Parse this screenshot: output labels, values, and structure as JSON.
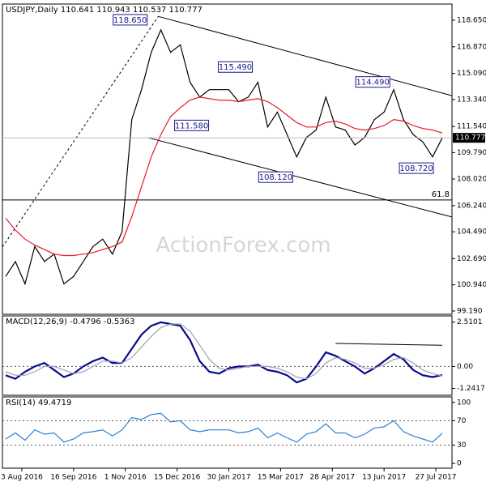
{
  "chart_data": [
    {
      "type": "line",
      "title": "USDJPY,Daily  110.641 110.943 110.537 110.777",
      "watermark": "ActionForex.com",
      "x": [
        -10,
        -4,
        2,
        8,
        14,
        20,
        26,
        32,
        38,
        44,
        50,
        56,
        62,
        68,
        74,
        80,
        86,
        92,
        98,
        104,
        110,
        116,
        122,
        128,
        134,
        140,
        146,
        152,
        158,
        164,
        170,
        176,
        182,
        188,
        194,
        200,
        206,
        212,
        218,
        224,
        230,
        236,
        242,
        248,
        254,
        260
      ],
      "xlim": [
        -12,
        266
      ],
      "series": [
        {
          "name": "Close",
          "color": "#000000",
          "values": [
            101.5,
            102.5,
            101,
            103.5,
            102.5,
            103,
            101,
            101.5,
            102.5,
            103.5,
            104,
            103,
            104.5,
            112,
            114,
            116.5,
            118,
            116.5,
            117,
            114.5,
            113.5,
            114,
            114,
            114,
            113.2,
            113.5,
            114.5,
            111.5,
            112.5,
            111,
            109.5,
            110.8,
            111.3,
            113.5,
            111.5,
            111.3,
            110.3,
            110.8,
            112,
            112.5,
            114,
            112,
            111,
            110.5,
            109.5,
            110.777
          ]
        },
        {
          "name": "SMA",
          "color": "#e8182a",
          "values": [
            105.4,
            104.6,
            104,
            103.6,
            103.3,
            103,
            102.9,
            102.9,
            103,
            103.1,
            103.3,
            103.5,
            103.8,
            105.5,
            107.5,
            109.5,
            111,
            112.2,
            112.8,
            113.3,
            113.5,
            113.4,
            113.3,
            113.3,
            113.2,
            113.3,
            113.4,
            113.2,
            112.8,
            112.3,
            111.8,
            111.5,
            111.5,
            111.8,
            111.9,
            111.7,
            111.4,
            111.3,
            111.4,
            111.6,
            112,
            111.9,
            111.6,
            111.4,
            111.3,
            111.1
          ]
        }
      ],
      "ylim": [
        98.97,
        119.73
      ],
      "yticks": [
        {
          "value": 118.65,
          "label": "118.650"
        },
        {
          "value": 116.87,
          "label": "116.870"
        },
        {
          "value": 115.09,
          "label": "115.090"
        },
        {
          "value": 113.34,
          "label": "113.340"
        },
        {
          "value": 111.54,
          "label": "111.540"
        },
        {
          "value": 109.79,
          "label": "109.790"
        },
        {
          "value": 108.02,
          "label": "108.020"
        },
        {
          "value": 106.24,
          "label": "106.240"
        },
        {
          "value": 104.49,
          "label": "104.490"
        },
        {
          "value": 102.69,
          "label": "102.690"
        },
        {
          "value": 100.94,
          "label": "100.940"
        },
        {
          "value": 99.19,
          "label": "99.190"
        }
      ],
      "last_price": 110.777,
      "annotations": [
        {
          "label": "118.650",
          "x": 67,
          "y": 118.65
        },
        {
          "label": "115.490",
          "x": 132,
          "y": 115.49
        },
        {
          "label": "111.580",
          "x": 105,
          "y": 111.58
        },
        {
          "label": "108.120",
          "x": 157,
          "y": 108.12
        },
        {
          "label": "114.490",
          "x": 217,
          "y": 114.49
        },
        {
          "label": "108.720",
          "x": 244,
          "y": 108.72
        }
      ],
      "lines": [
        {
          "x": [
            84.5,
            266
          ],
          "y": [
            118.9,
            113.6
          ],
          "style": "solid"
        },
        {
          "x": [
            78,
            266
          ],
          "y": [
            110.79,
            105.48
          ],
          "style": "solid"
        },
        {
          "x": [
            -12,
            266
          ],
          "y": [
            106.62,
            106.62
          ],
          "style": "solid",
          "label": "61.8"
        },
        {
          "x": [
            -12,
            84.5
          ],
          "y": [
            103.47,
            118.92
          ],
          "style": "dashed"
        }
      ]
    },
    {
      "type": "line",
      "title": "MACD(12,26,9) -0.4796 -0.5363",
      "series": [
        {
          "name": "MACD",
          "color": "#0a0a8c",
          "values": [
            -0.5,
            -0.7,
            -0.3,
            0,
            0.2,
            -0.2,
            -0.6,
            -0.4,
            0,
            0.3,
            0.5,
            0.2,
            0.2,
            1.0,
            1.8,
            2.3,
            2.5,
            2.4,
            2.3,
            1.5,
            0.3,
            -0.3,
            -0.4,
            -0.1,
            0,
            0,
            0.1,
            -0.2,
            -0.3,
            -0.5,
            -0.9,
            -0.7,
            0,
            0.8,
            0.6,
            0.3,
            0,
            -0.4,
            -0.1,
            0.3,
            0.7,
            0.4,
            -0.2,
            -0.5,
            -0.6,
            -0.48
          ]
        },
        {
          "name": "Signal",
          "color": "#a0a0b4",
          "values": [
            -0.3,
            -0.5,
            -0.5,
            -0.3,
            0,
            0,
            -0.2,
            -0.4,
            -0.3,
            0,
            0.3,
            0.3,
            0.2,
            0.5,
            1.1,
            1.7,
            2.2,
            2.4,
            2.4,
            2.0,
            1.2,
            0.4,
            -0.1,
            -0.2,
            -0.1,
            0,
            0,
            0,
            -0.1,
            -0.3,
            -0.6,
            -0.7,
            -0.4,
            0.2,
            0.5,
            0.4,
            0.2,
            -0.1,
            -0.1,
            0.1,
            0.4,
            0.5,
            0.2,
            -0.2,
            -0.4,
            -0.54
          ]
        }
      ],
      "ylim": [
        -1.63,
        2.86
      ],
      "yticks": [
        2.5101,
        {
          "value": 0,
          "label": "0.00"
        },
        -1.2417
      ],
      "dashed_levels": [
        0
      ],
      "lines": [
        {
          "x": [
            194,
            260
          ],
          "y": [
            1.3,
            1.2
          ],
          "style": "solid"
        }
      ]
    },
    {
      "type": "line",
      "title": "RSI(14) 49.4719",
      "series": [
        {
          "name": "RSI",
          "color": "#2a7fd4",
          "values": [
            40,
            50,
            38,
            55,
            48,
            50,
            35,
            40,
            50,
            52,
            55,
            45,
            55,
            75,
            72,
            80,
            82,
            68,
            70,
            55,
            52,
            55,
            55,
            55,
            50,
            52,
            58,
            42,
            50,
            42,
            35,
            48,
            52,
            65,
            50,
            50,
            42,
            48,
            58,
            60,
            70,
            52,
            45,
            40,
            35,
            49.47
          ]
        }
      ],
      "ylim": [
        -7.8,
        109
      ],
      "yticks": [
        100,
        70,
        30,
        0
      ],
      "dashed_levels": [
        70,
        30
      ],
      "xticks": [
        {
          "value": 0,
          "label": "3 Aug 2016"
        },
        {
          "value": 32,
          "label": "16 Sep 2016"
        },
        {
          "value": 64,
          "label": "1 Nov 2016"
        },
        {
          "value": 96,
          "label": "15 Dec 2016"
        },
        {
          "value": 128,
          "label": "30 Jan 2017"
        },
        {
          "value": 160,
          "label": "15 Mar 2017"
        },
        {
          "value": 192,
          "label": "28 Apr 2017"
        },
        {
          "value": 224,
          "label": "13 Jun 2017"
        },
        {
          "value": 256,
          "label": "27 Jul 2017"
        }
      ]
    }
  ]
}
